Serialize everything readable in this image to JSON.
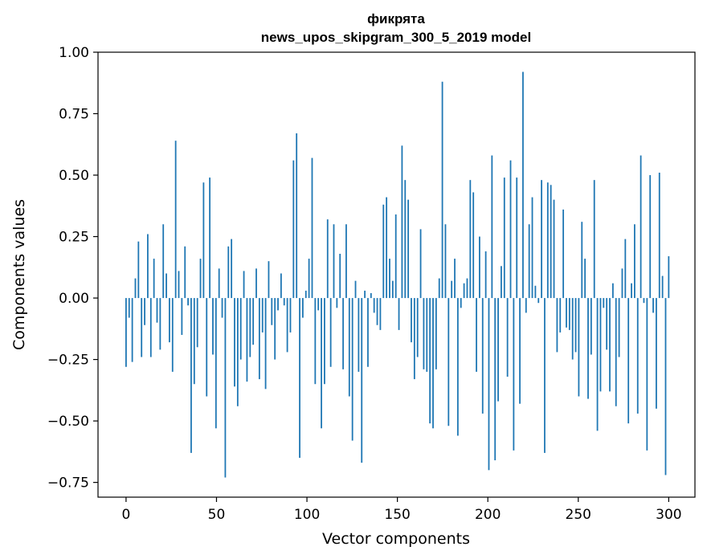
{
  "chart_data": {
    "type": "bar",
    "title_lines": [
      "фикрята",
      "news_upos_skipgram_300_5_2019 model"
    ],
    "xlabel": "Vector components",
    "ylabel": "Components values",
    "xlim": [
      -15.5,
      314.5
    ],
    "ylim": [
      -0.81,
      1.0
    ],
    "xticks": [
      0,
      50,
      100,
      150,
      200,
      250,
      300
    ],
    "xtick_labels": [
      "0",
      "50",
      "100",
      "150",
      "200",
      "250",
      "300"
    ],
    "yticks": [
      1.0,
      0.75,
      0.5,
      0.25,
      0.0,
      -0.25,
      -0.5,
      -0.75
    ],
    "ytick_labels": [
      "1.00",
      "0.75",
      "0.50",
      "0.25",
      "0.00",
      "−0.25",
      "−0.50",
      "−0.75"
    ],
    "grid": false,
    "bar_color": "#1f77b4",
    "values": [
      -0.28,
      -0.08,
      -0.26,
      0.08,
      0.23,
      -0.24,
      -0.11,
      0.26,
      -0.24,
      0.16,
      -0.1,
      -0.21,
      0.3,
      0.1,
      -0.18,
      -0.3,
      0.64,
      0.11,
      -0.15,
      0.21,
      -0.03,
      -0.63,
      -0.35,
      -0.2,
      0.16,
      0.47,
      -0.4,
      0.49,
      -0.23,
      -0.53,
      0.12,
      -0.08,
      -0.73,
      0.21,
      0.24,
      -0.36,
      -0.44,
      -0.25,
      0.11,
      -0.34,
      -0.24,
      -0.19,
      0.12,
      -0.33,
      -0.14,
      -0.37,
      0.15,
      -0.11,
      -0.25,
      -0.05,
      0.1,
      -0.03,
      -0.22,
      -0.14,
      0.56,
      0.67,
      -0.65,
      -0.08,
      0.03,
      0.16,
      0.57,
      -0.35,
      -0.05,
      -0.53,
      -0.35,
      0.32,
      -0.28,
      0.3,
      -0.04,
      0.18,
      -0.29,
      0.3,
      -0.4,
      -0.58,
      0.07,
      -0.3,
      -0.67,
      0.03,
      -0.28,
      0.02,
      -0.06,
      -0.11,
      -0.13,
      0.38,
      0.41,
      0.16,
      0.07,
      0.34,
      -0.13,
      0.62,
      0.48,
      0.4,
      -0.18,
      -0.33,
      -0.24,
      0.28,
      -0.29,
      -0.3,
      -0.51,
      -0.53,
      -0.29,
      0.08,
      0.88,
      0.3,
      -0.52,
      0.07,
      0.16,
      -0.56,
      -0.04,
      0.06,
      0.08,
      0.48,
      0.43,
      -0.3,
      0.25,
      -0.47,
      0.19,
      -0.7,
      0.58,
      -0.66,
      -0.42,
      0.13,
      0.49,
      -0.32,
      0.56,
      -0.62,
      0.49,
      -0.43,
      0.92,
      -0.06,
      0.3,
      0.41,
      0.05,
      -0.02,
      0.48,
      -0.63,
      0.47,
      0.46,
      0.4,
      -0.22,
      -0.14,
      0.36,
      -0.12,
      -0.13,
      -0.25,
      -0.22,
      -0.4,
      0.31,
      0.16,
      -0.41,
      -0.23,
      0.48,
      -0.54,
      -0.38,
      -0.04,
      -0.21,
      -0.38,
      0.06,
      -0.44,
      -0.24,
      0.12,
      0.24,
      -0.51,
      0.06,
      0.3,
      -0.47,
      0.58,
      -0.02,
      -0.62,
      0.5,
      -0.06,
      -0.45,
      0.51,
      0.09,
      -0.72,
      0.17
    ],
    "x_start": 0
  }
}
